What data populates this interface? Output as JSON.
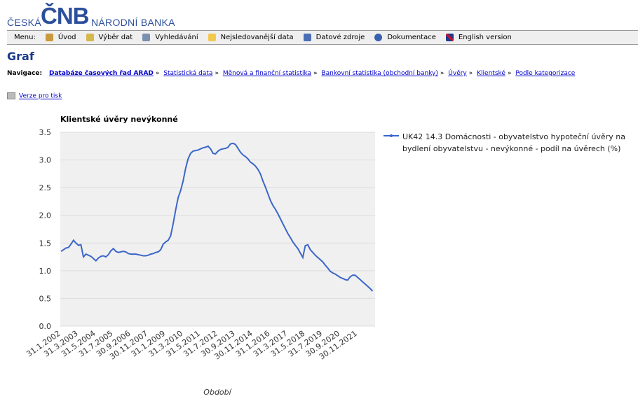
{
  "header": {
    "logo_left": "ČESKÁ",
    "logo_mark": "ČNB",
    "logo_right": "NÁRODNÍ BANKA"
  },
  "menu": {
    "label": "Menu:",
    "items": [
      "Úvod",
      "Výběr dat",
      "Vyhledávání",
      "Nejsledovanější data",
      "Datové zdroje",
      "Dokumentace",
      "English version"
    ]
  },
  "page_title": "Graf",
  "navigation": {
    "label": "Navigace:",
    "separator": "»",
    "links": [
      "Databáze časových řad ARAD",
      "Statistická data",
      "Měnová a finanční statistika",
      "Bankovní statistika (obchodní banky)",
      "Úvěry",
      "Klientské",
      "Podle kategorizace"
    ]
  },
  "print_link": "Verze pro tisk",
  "chart_data": {
    "type": "line",
    "title": "Klientské úvěry nevýkonné",
    "x_label": "Období",
    "categories": [
      "31.1.2002",
      null,
      null,
      null,
      null,
      null,
      null,
      "31.3.2003",
      null,
      null,
      null,
      null,
      null,
      null,
      "31.5.2004",
      null,
      null,
      null,
      null,
      null,
      null,
      "31.7.2005",
      null,
      null,
      null,
      null,
      null,
      null,
      "30.9.2006",
      null,
      null,
      null,
      null,
      null,
      null,
      "30.11.2007",
      null,
      null,
      null,
      null,
      null,
      null,
      "31.1.2009",
      null,
      null,
      null,
      null,
      null,
      null,
      "31.3.2010",
      null,
      null,
      null,
      null,
      null,
      null,
      "31.5.2011",
      null,
      null,
      null,
      null,
      null,
      null,
      "31.7.2012",
      null,
      null,
      null,
      null,
      null,
      null,
      "30.9.2013",
      null,
      null,
      null,
      null,
      null,
      null,
      "30.11.2014",
      null,
      null,
      null,
      null,
      null,
      null,
      "31.1.2016",
      null,
      null,
      null,
      null,
      null,
      null,
      "31.3.2017",
      null,
      null,
      null,
      null,
      null,
      null,
      "31.5.2018",
      null,
      null,
      null,
      null,
      null,
      null,
      "31.7.2019",
      null,
      null,
      null,
      null,
      null,
      null,
      "30.9.2020",
      null,
      null,
      null,
      null,
      null,
      null,
      "30.11.2021",
      null,
      null,
      null,
      null,
      null,
      null
    ],
    "series": [
      {
        "name": "UK42 14.3 Domácnosti - obyvatelstvo hypoteční úvěry na bydlení obyvatelstvu - nevýkonné - podíl na úvěrech (%)",
        "color": "#3b66c8",
        "values": [
          1.35,
          1.38,
          1.41,
          1.42,
          1.48,
          1.55,
          1.5,
          1.46,
          1.47,
          1.25,
          1.3,
          1.28,
          1.26,
          1.22,
          1.18,
          1.23,
          1.26,
          1.27,
          1.25,
          1.29,
          1.36,
          1.4,
          1.35,
          1.33,
          1.34,
          1.35,
          1.34,
          1.31,
          1.3,
          1.3,
          1.3,
          1.29,
          1.28,
          1.27,
          1.27,
          1.28,
          1.3,
          1.31,
          1.33,
          1.34,
          1.38,
          1.48,
          1.52,
          1.55,
          1.63,
          1.85,
          2.1,
          2.32,
          2.45,
          2.62,
          2.85,
          3.02,
          3.12,
          3.16,
          3.17,
          3.18,
          3.2,
          3.22,
          3.23,
          3.25,
          3.2,
          3.12,
          3.11,
          3.16,
          3.19,
          3.2,
          3.21,
          3.23,
          3.29,
          3.3,
          3.28,
          3.21,
          3.14,
          3.09,
          3.06,
          3.02,
          2.96,
          2.93,
          2.89,
          2.83,
          2.75,
          2.62,
          2.51,
          2.39,
          2.27,
          2.18,
          2.11,
          2.03,
          1.94,
          1.85,
          1.76,
          1.67,
          1.6,
          1.52,
          1.46,
          1.4,
          1.32,
          1.24,
          1.45,
          1.47,
          1.38,
          1.33,
          1.28,
          1.24,
          1.2,
          1.16,
          1.1,
          1.05,
          0.99,
          0.96,
          0.94,
          0.91,
          0.88,
          0.86,
          0.84,
          0.83,
          0.89,
          0.92,
          0.92,
          0.88,
          0.84,
          0.8,
          0.76,
          0.72,
          0.68,
          0.63
        ]
      }
    ],
    "ylim": [
      0,
      3.5
    ],
    "yticks": [
      {
        "value": 0,
        "label": "0.0"
      },
      0.5,
      {
        "value": 1,
        "label": "1.0"
      },
      1.5,
      {
        "value": 2,
        "label": "2.0"
      },
      2.5,
      {
        "value": 3,
        "label": "3.0"
      },
      3.5
    ],
    "grid": true,
    "legend": "right"
  }
}
